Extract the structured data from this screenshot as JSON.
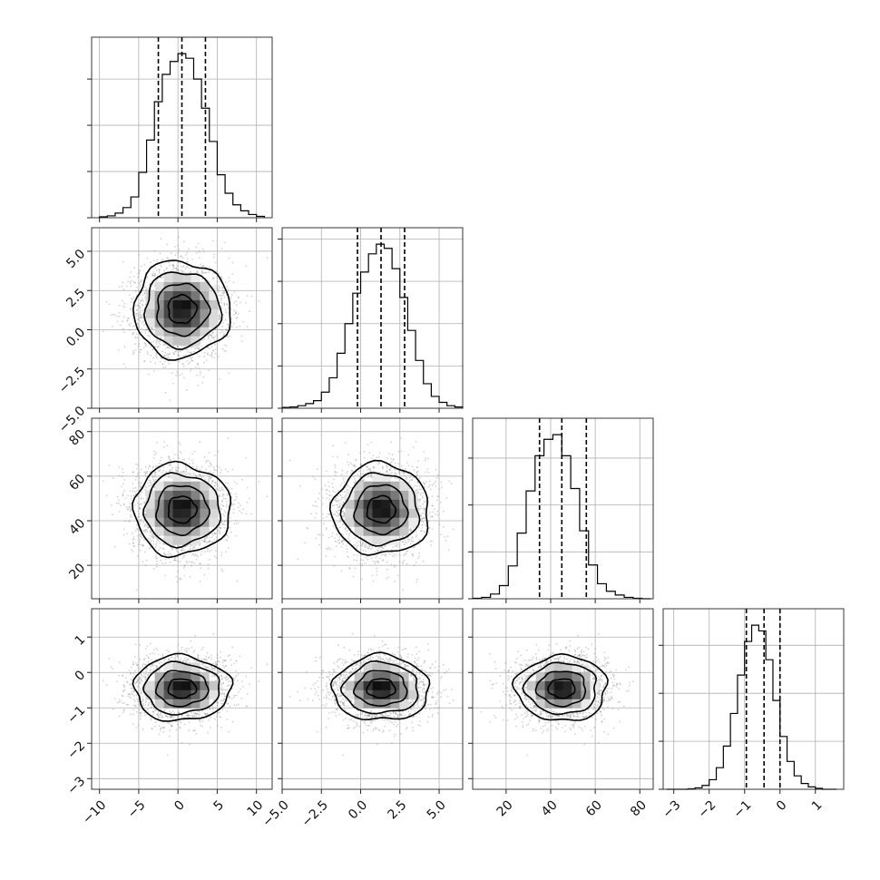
{
  "chart_data": {
    "type": "corner",
    "grid": true,
    "parameters": [
      {
        "range": [
          -11,
          12
        ],
        "ticks": [
          -10,
          -5,
          0,
          5,
          10
        ],
        "tick_labels": [
          "−10",
          "−5",
          "0",
          "5",
          "10"
        ],
        "mean": 0.5,
        "sd": 3.0,
        "quantiles": [
          -2.5,
          0.5,
          3.5
        ]
      },
      {
        "range": [
          -5.0,
          6.5
        ],
        "ticks": [
          -5.0,
          -2.5,
          0.0,
          2.5,
          5.0
        ],
        "tick_labels": [
          "−5.0",
          "−2.5",
          "0.0",
          "2.5",
          "5.0"
        ],
        "mean": 1.3,
        "sd": 1.5,
        "quantiles": [
          -0.2,
          1.3,
          2.8
        ]
      },
      {
        "range": [
          5,
          86
        ],
        "ticks": [
          20,
          40,
          60,
          80
        ],
        "tick_labels": [
          "20",
          "40",
          "60",
          "80"
        ],
        "mean": 45,
        "sd": 10,
        "quantiles": [
          35,
          45,
          56
        ]
      },
      {
        "range": [
          -3.3,
          1.8
        ],
        "ticks": [
          -3,
          -2,
          -1,
          0,
          1
        ],
        "tick_labels": [
          "−3",
          "−2",
          "−1",
          "0",
          "1"
        ],
        "mean": -0.45,
        "sd": 0.45,
        "quantiles": [
          -0.95,
          -0.45,
          0.0
        ]
      }
    ],
    "histograms": [
      {
        "param": 0,
        "bin_edges": [
          -10,
          -9,
          -8,
          -7,
          -6,
          -5,
          -4,
          -3,
          -2,
          -1,
          0,
          1,
          2,
          3,
          4,
          5,
          6,
          7,
          8,
          9,
          10,
          11
        ],
        "counts": [
          2,
          4,
          10,
          22,
          45,
          98,
          168,
          251,
          310,
          338,
          355,
          345,
          300,
          237,
          165,
          93,
          53,
          28,
          15,
          7,
          3
        ]
      },
      {
        "param": 1,
        "bin_edges": [
          -5.0,
          -4.5,
          -4.0,
          -3.5,
          -3.0,
          -2.5,
          -2.0,
          -1.5,
          -1.0,
          -0.5,
          0.0,
          0.5,
          1.0,
          1.5,
          2.0,
          2.5,
          3.0,
          3.5,
          4.0,
          4.5,
          5.0,
          5.5,
          6.0,
          6.5
        ],
        "counts": [
          2,
          3,
          6,
          11,
          18,
          38,
          72,
          130,
          200,
          272,
          322,
          365,
          388,
          378,
          330,
          262,
          184,
          113,
          58,
          28,
          14,
          6,
          3
        ]
      },
      {
        "param": 2,
        "bin_edges": [
          5,
          9,
          13,
          17,
          21,
          25,
          29,
          33,
          37,
          41,
          45,
          49,
          53,
          57,
          61,
          65,
          69,
          73,
          77,
          81,
          85
        ],
        "counts": [
          1,
          3,
          10,
          28,
          70,
          140,
          230,
          305,
          340,
          350,
          305,
          235,
          145,
          72,
          32,
          16,
          8,
          3,
          1,
          0
        ]
      },
      {
        "param": 3,
        "bin_edges": [
          -3.2,
          -3.0,
          -2.8,
          -2.6,
          -2.4,
          -2.2,
          -2.0,
          -1.8,
          -1.6,
          -1.4,
          -1.2,
          -1.0,
          -0.8,
          -0.6,
          -0.4,
          -0.2,
          0.0,
          0.2,
          0.4,
          0.6,
          0.8,
          1.0,
          1.2,
          1.4,
          1.6
        ],
        "counts": [
          0,
          0,
          0,
          1,
          3,
          8,
          20,
          45,
          90,
          158,
          238,
          308,
          342,
          330,
          270,
          185,
          110,
          58,
          28,
          12,
          5,
          2,
          0,
          0
        ]
      }
    ]
  },
  "colors": {
    "frame": "#222222",
    "grid": "#b0b0b0",
    "scatter": "#8c8c8c",
    "density_low": "#f0f0f0",
    "density_high": "#000000",
    "line": "#000000"
  }
}
